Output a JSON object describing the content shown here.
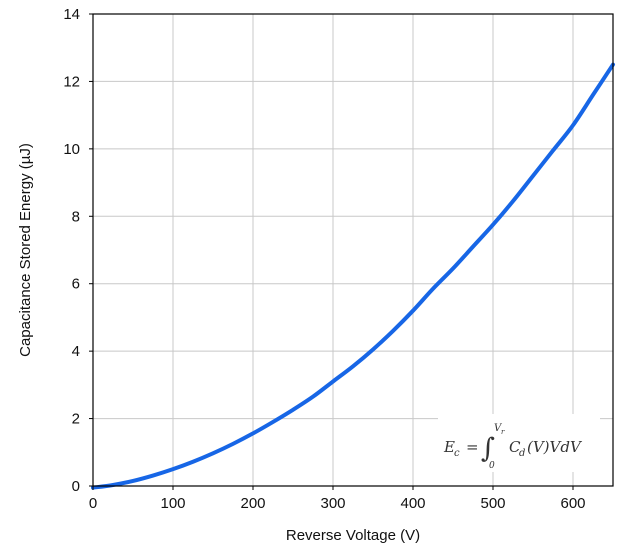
{
  "chart_data": {
    "type": "line",
    "title": "",
    "xlabel": "Reverse Voltage (V)",
    "ylabel": "Capacitance Stored Energy (µJ)",
    "xlim": [
      0,
      650
    ],
    "ylim": [
      0,
      14
    ],
    "xticks": [
      0,
      100,
      200,
      300,
      400,
      500,
      600
    ],
    "yticks": [
      0,
      2,
      4,
      6,
      8,
      10,
      12,
      14
    ],
    "xtick_labels": [
      "0",
      "100",
      "200",
      "300",
      "400",
      "500",
      "600"
    ],
    "ytick_labels": [
      "0",
      "2",
      "4",
      "6",
      "8",
      "10",
      "12",
      "14"
    ],
    "grid": true,
    "series": [
      {
        "color": "#1766e6",
        "x": [
          0,
          25,
          50,
          75,
          100,
          125,
          150,
          175,
          200,
          225,
          250,
          275,
          300,
          325,
          350,
          375,
          400,
          425,
          450,
          475,
          500,
          525,
          550,
          575,
          600,
          625,
          650
        ],
        "y": [
          -0.05,
          0.03,
          0.15,
          0.31,
          0.5,
          0.72,
          0.97,
          1.25,
          1.56,
          1.9,
          2.26,
          2.65,
          3.1,
          3.55,
          4.05,
          4.6,
          5.2,
          5.85,
          6.45,
          7.1,
          7.75,
          8.45,
          9.2,
          9.95,
          10.7,
          11.6,
          12.5
        ]
      }
    ],
    "annotation": {
      "lhs": "E",
      "lhs_sub": "c",
      "equals": "=",
      "integral": "∫",
      "lower": "0",
      "upper": "V",
      "upper_sub": "r",
      "integrand_c": "C",
      "integrand_c_sub": "d",
      "integrand_rest": "(V)VdV"
    }
  }
}
